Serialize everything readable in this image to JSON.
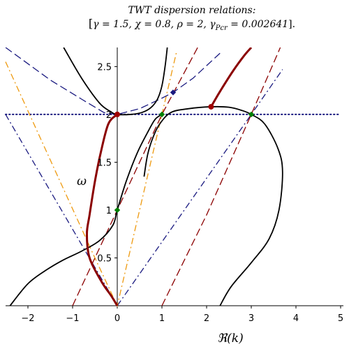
{
  "chart_data": {
    "type": "line",
    "title": "TWT dispersion relations:",
    "subtitle": "[γ = 1.5, χ = 0.8, ρ = 2, γ_Pcr = 0.002641].",
    "subtitle_parts": {
      "open": "[",
      "main": "γ = 1.5, χ = 0.8, ρ = 2, γ",
      "sub": "Pcr",
      "tail": " = 0.002641",
      "close": "]."
    },
    "xlabel": "ℜ(k)",
    "ylabel": "ω",
    "xlim": [
      -2.5,
      5
    ],
    "ylim": [
      0,
      2.7
    ],
    "xticks": [
      "−2",
      "−1",
      "0",
      "1",
      "2",
      "3",
      "4",
      "5"
    ],
    "xtick_values": [
      -2,
      -1,
      0,
      1,
      2,
      3,
      4,
      5
    ],
    "yticks": [
      "0.5",
      "1",
      "1.5",
      "2",
      "2.5"
    ],
    "ytick_values": [
      0.5,
      1,
      1.5,
      2,
      2.5
    ],
    "grid": false,
    "colors": {
      "black": "#000000",
      "darkred": "#8b0000",
      "navy": "#1a1a80",
      "orange": "#ee9a10",
      "marker_red": "#a00000",
      "marker_green": "#008000",
      "marker_blue": "#1a1a80"
    },
    "lines": [
      {
        "style": "dotted",
        "color": "navy",
        "points": [
          [
            -2.5,
            2.0
          ],
          [
            5.0,
            2.0
          ]
        ]
      },
      {
        "style": "dashdot",
        "color": "navy",
        "points": [
          [
            -2.5,
            2.0
          ],
          [
            0.0,
            0.0
          ]
        ]
      },
      {
        "style": "dashdot",
        "color": "navy",
        "points": [
          [
            0.0,
            0.0
          ],
          [
            3.0,
            2.0
          ],
          [
            3.7,
            2.47
          ]
        ]
      },
      {
        "style": "dashdot",
        "color": "orange",
        "points": [
          [
            -2.5,
            2.55
          ],
          [
            -0.52,
            0.52
          ],
          [
            0.0,
            0.0
          ],
          [
            1.0,
            2.0
          ],
          [
            1.33,
            2.66
          ]
        ]
      },
      {
        "style": "dashed",
        "color": "darkred",
        "points": [
          [
            -1.0,
            0.0
          ],
          [
            0.0,
            1.0
          ],
          [
            1.0,
            2.0
          ],
          [
            1.8,
            2.7
          ]
        ]
      },
      {
        "style": "dashed",
        "color": "darkred",
        "points": [
          [
            1.0,
            0.0
          ],
          [
            2.0,
            0.95
          ],
          [
            3.0,
            2.0
          ],
          [
            3.65,
            2.7
          ]
        ]
      },
      {
        "style": "dashed",
        "color": "navy",
        "points": [
          [
            -2.5,
            2.7
          ],
          [
            -1.5,
            2.36
          ],
          [
            -0.8,
            2.16
          ],
          [
            -0.3,
            2.02
          ],
          [
            0.0,
            2.0
          ],
          [
            0.5,
            2.06
          ],
          [
            1.0,
            2.17
          ],
          [
            1.25,
            2.23
          ],
          [
            1.7,
            2.38
          ],
          [
            2.3,
            2.64
          ]
        ]
      },
      {
        "style": "solid",
        "color": "black",
        "width": 1.8,
        "points": [
          [
            -1.2,
            2.7
          ],
          [
            -0.8,
            2.38
          ],
          [
            -0.4,
            2.12
          ],
          [
            -0.15,
            2.03
          ],
          [
            0.0,
            2.0
          ],
          [
            0.3,
            2.0
          ],
          [
            0.55,
            2.02
          ],
          [
            0.75,
            2.07
          ],
          [
            0.9,
            2.16
          ],
          [
            1.0,
            2.3
          ],
          [
            1.07,
            2.5
          ],
          [
            1.12,
            2.7
          ]
        ]
      },
      {
        "style": "solid",
        "color": "black",
        "width": 1.8,
        "points": [
          [
            -2.4,
            0.0
          ],
          [
            -2.0,
            0.23
          ],
          [
            -1.6,
            0.37
          ],
          [
            -1.2,
            0.48
          ],
          [
            -0.8,
            0.57
          ],
          [
            -0.4,
            0.68
          ],
          [
            -0.1,
            0.84
          ],
          [
            0.0,
            1.0
          ],
          [
            0.2,
            1.3
          ],
          [
            0.45,
            1.6
          ],
          [
            0.7,
            1.83
          ],
          [
            0.85,
            1.95
          ],
          [
            1.0,
            2.0
          ]
        ]
      },
      {
        "style": "solid",
        "color": "black",
        "width": 1.8,
        "points": [
          [
            0.6,
            1.35
          ],
          [
            0.68,
            1.58
          ],
          [
            0.8,
            1.76
          ],
          [
            0.95,
            1.9
          ],
          [
            1.2,
            2.02
          ],
          [
            1.6,
            2.06
          ],
          [
            2.1,
            2.08
          ],
          [
            2.5,
            2.075
          ],
          [
            2.8,
            2.04
          ],
          [
            3.0,
            2.0
          ],
          [
            3.3,
            1.9
          ],
          [
            3.6,
            1.64
          ],
          [
            3.7,
            1.4
          ],
          [
            3.62,
            1.0
          ],
          [
            3.4,
            0.7
          ],
          [
            3.0,
            0.45
          ],
          [
            2.55,
            0.2
          ],
          [
            2.3,
            0.0
          ]
        ]
      },
      {
        "style": "solid",
        "color": "darkred",
        "width": 3,
        "points": [
          [
            0.0,
            2.0
          ],
          [
            -0.2,
            1.9
          ],
          [
            -0.37,
            1.6
          ],
          [
            -0.5,
            1.3
          ],
          [
            -0.62,
            0.95
          ],
          [
            -0.68,
            0.75
          ],
          [
            -0.62,
            0.5
          ],
          [
            -0.35,
            0.25
          ],
          [
            -0.13,
            0.1
          ],
          [
            0.0,
            0.0
          ]
        ]
      },
      {
        "style": "solid",
        "color": "darkred",
        "width": 3,
        "points": [
          [
            2.1,
            2.08
          ],
          [
            2.3,
            2.24
          ],
          [
            2.6,
            2.46
          ],
          [
            2.85,
            2.62
          ],
          [
            3.0,
            2.7
          ]
        ]
      }
    ],
    "markers": [
      {
        "x": 0.0,
        "y": 2.0,
        "shape": "circle",
        "color": "marker_red"
      },
      {
        "x": 2.1,
        "y": 2.08,
        "shape": "circle",
        "color": "marker_red"
      },
      {
        "x": 1.0,
        "y": 2.0,
        "shape": "diamond",
        "color": "marker_green"
      },
      {
        "x": 3.0,
        "y": 2.0,
        "shape": "diamond",
        "color": "marker_green"
      },
      {
        "x": 0.0,
        "y": 1.0,
        "shape": "diamond",
        "color": "marker_green"
      },
      {
        "x": 1.25,
        "y": 2.23,
        "shape": "diamond",
        "color": "marker_blue"
      }
    ]
  }
}
